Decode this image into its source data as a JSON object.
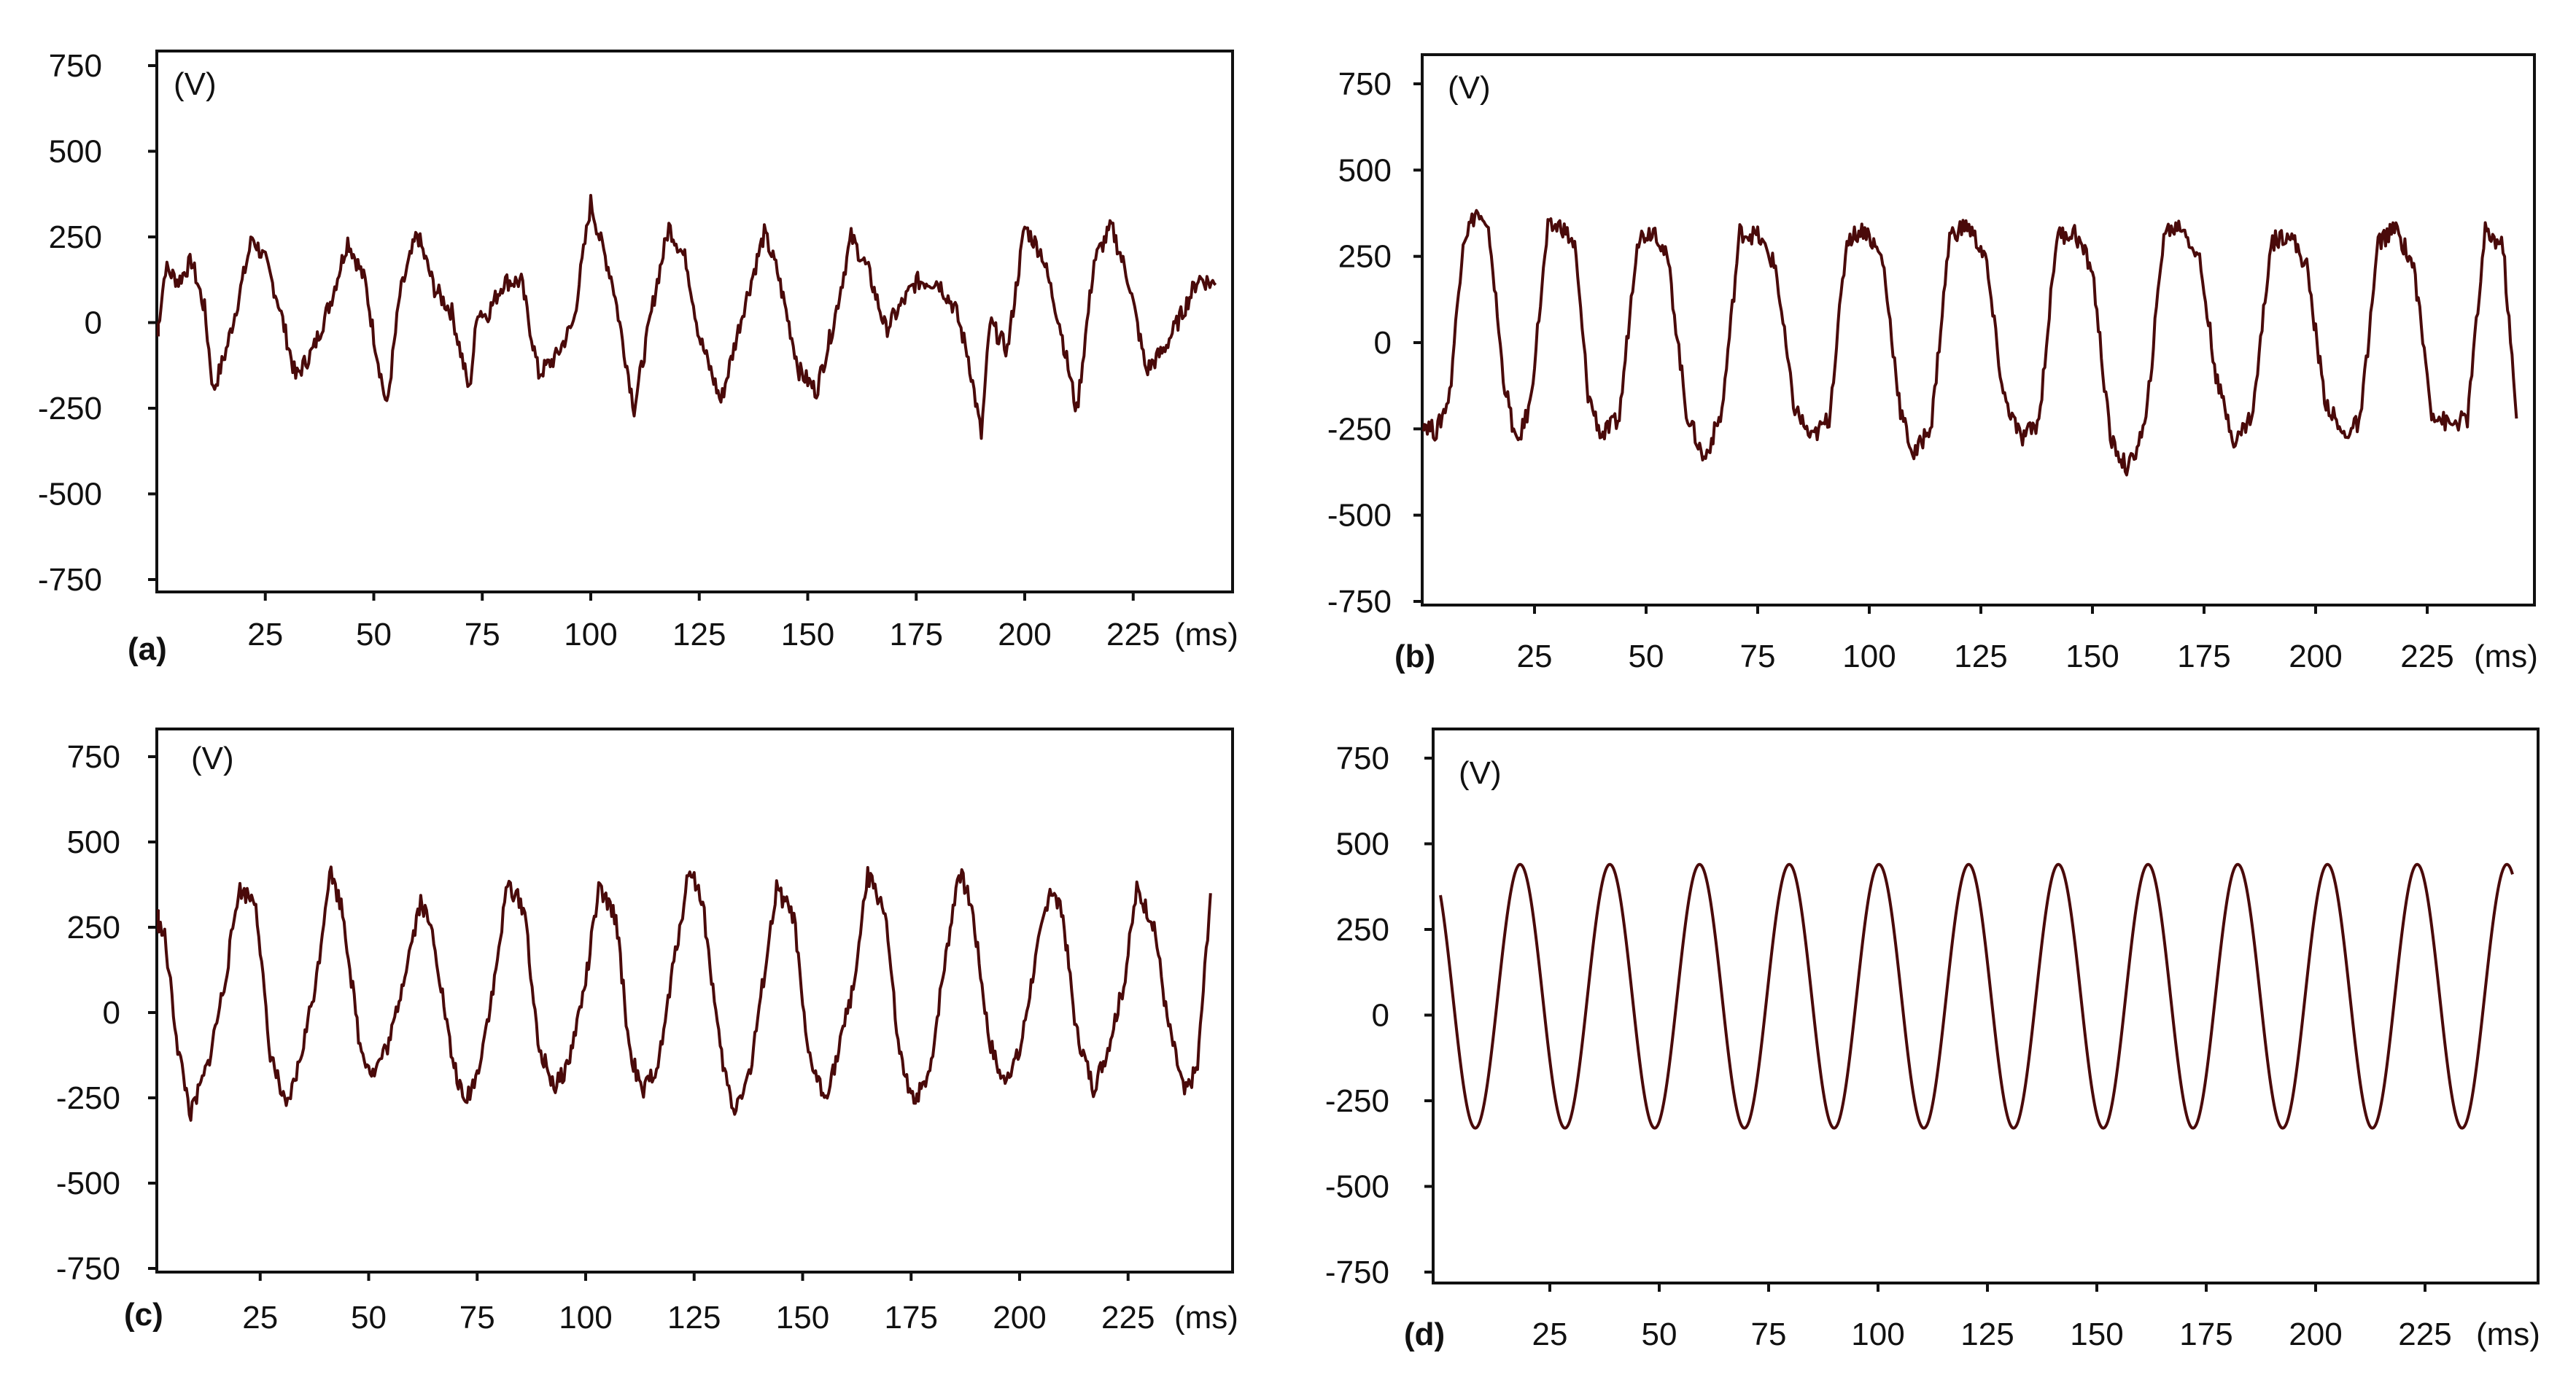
{
  "colors": {
    "waveform": "#4a0a0a",
    "axes": "#111111",
    "background": "#ffffff"
  },
  "chart_data": [
    {
      "type": "line",
      "panel_label": "(a)",
      "ylabel": "(V)",
      "xlabel": "(ms)",
      "ylim": [
        -750,
        750
      ],
      "xlim": [
        0,
        245
      ],
      "yticks": [
        "750",
        "500",
        "250",
        "0",
        "-250",
        "-500",
        "-750"
      ],
      "xticks": [
        "25",
        "50",
        "75",
        "100",
        "125",
        "150",
        "175",
        "200",
        "225"
      ],
      "series": [
        {
          "x": [
            0,
            2,
            5,
            8,
            11,
            13,
            16,
            19,
            22,
            25,
            28,
            32,
            36,
            40,
            44,
            48,
            50,
            53,
            56,
            60,
            64,
            68,
            72,
            74,
            76,
            80,
            84,
            88,
            92,
            96,
            100,
            102,
            105,
            110,
            115,
            118,
            122,
            125,
            130,
            135,
            140,
            143,
            148,
            152,
            156,
            160,
            164,
            168,
            175,
            180,
            184,
            187,
            190,
            192,
            196,
            200,
            204,
            208,
            212,
            216,
            220,
            224,
            228,
            232,
            236,
            240,
            244
          ],
          "y": [
            -40,
            160,
            120,
            180,
            40,
            -200,
            -80,
            80,
            250,
            180,
            60,
            -160,
            -80,
            60,
            240,
            120,
            -40,
            -250,
            80,
            260,
            100,
            30,
            -200,
            40,
            20,
            120,
            120,
            -150,
            -100,
            0,
            350,
            250,
            120,
            -250,
            100,
            280,
            180,
            -40,
            -230,
            30,
            260,
            150,
            -140,
            -200,
            0,
            250,
            150,
            -20,
            120,
            120,
            40,
            -100,
            -330,
            0,
            -80,
            280,
            200,
            0,
            -260,
            180,
            280,
            120,
            -140,
            -80,
            20,
            130,
            110
          ]
        }
      ]
    },
    {
      "type": "line",
      "panel_label": "(b)",
      "ylabel": "(V)",
      "xlabel": "(ms)",
      "ylim": [
        -750,
        750
      ],
      "xlim": [
        0,
        245
      ],
      "yticks": [
        "750",
        "500",
        "250",
        "0",
        "-250",
        "-500",
        "-750"
      ],
      "xticks": [
        "25",
        "50",
        "75",
        "100",
        "125",
        "150",
        "175",
        "200",
        "225"
      ],
      "series": [
        {
          "x": [
            0,
            3,
            6,
            9,
            12,
            15,
            18,
            21,
            24,
            28,
            31,
            34,
            37,
            40,
            44,
            48,
            52,
            55,
            59,
            63,
            67,
            71,
            75,
            79,
            83,
            87,
            91,
            95,
            99,
            103,
            107,
            110,
            114,
            118,
            122,
            126,
            130,
            134,
            138,
            142,
            146,
            150,
            154,
            158,
            162,
            166,
            170,
            174,
            178,
            182,
            186,
            190,
            194,
            198,
            202,
            206,
            210,
            214,
            218,
            222,
            226,
            230,
            234,
            238,
            242,
            245
          ],
          "y": [
            -230,
            -260,
            -150,
            300,
            380,
            300,
            -100,
            -300,
            -180,
            330,
            340,
            280,
            -150,
            -270,
            -220,
            300,
            330,
            230,
            -200,
            -340,
            -200,
            320,
            310,
            220,
            -180,
            -280,
            -220,
            300,
            330,
            240,
            -200,
            -330,
            -230,
            310,
            340,
            250,
            -150,
            -280,
            -230,
            310,
            320,
            210,
            -280,
            -370,
            -230,
            320,
            340,
            240,
            -120,
            -290,
            -200,
            290,
            320,
            220,
            -160,
            -270,
            -230,
            290,
            330,
            220,
            -200,
            -240,
            -220,
            320,
            280,
            -220
          ]
        }
      ]
    },
    {
      "type": "line",
      "panel_label": "(c)",
      "ylabel": "(V)",
      "xlabel": "(ms)",
      "ylim": [
        -750,
        750
      ],
      "xlim": [
        0,
        245
      ],
      "yticks": [
        "750",
        "500",
        "250",
        "0",
        "-250",
        "-500",
        "-750"
      ],
      "xticks": [
        "25",
        "50",
        "75",
        "100",
        "125",
        "150",
        "175",
        "200",
        "225"
      ],
      "series": [
        {
          "x": [
            0,
            3,
            6,
            9,
            13,
            17,
            20,
            24,
            27,
            31,
            34,
            38,
            41,
            44,
            48,
            51,
            55,
            58,
            62,
            65,
            69,
            72,
            75,
            79,
            82,
            86,
            89,
            93,
            96,
            100,
            103,
            107,
            110,
            113,
            117,
            120,
            124,
            127,
            131,
            134,
            138,
            141,
            144,
            148,
            151,
            155,
            158,
            162,
            165,
            169,
            172,
            175,
            179,
            182,
            186,
            189,
            193,
            196,
            200,
            203,
            207,
            210,
            213,
            217,
            220,
            224,
            227,
            231,
            234,
            238,
            241,
            244
          ],
          "y": [
            300,
            220,
            -100,
            -300,
            -150,
            100,
            360,
            330,
            -100,
            -290,
            -150,
            100,
            420,
            300,
            -100,
            -180,
            -80,
            100,
            330,
            220,
            -120,
            -270,
            -180,
            90,
            380,
            300,
            -100,
            -220,
            -150,
            90,
            360,
            280,
            -100,
            -240,
            -140,
            120,
            430,
            320,
            -110,
            -290,
            -170,
            100,
            360,
            280,
            -110,
            -250,
            -130,
            100,
            400,
            300,
            -100,
            -260,
            -200,
            80,
            420,
            310,
            -80,
            -200,
            -120,
            110,
            370,
            280,
            -50,
            -220,
            -120,
            80,
            360,
            260,
            -20,
            -240,
            -160,
            350
          ]
        }
      ]
    },
    {
      "type": "line",
      "panel_label": "(d)",
      "ylabel": "(V)",
      "xlabel": "(ms)",
      "ylim": [
        -750,
        750
      ],
      "xlim": [
        0,
        245
      ],
      "yticks": [
        "750",
        "500",
        "250",
        "0",
        "-250",
        "-500",
        "-750"
      ],
      "xticks": [
        "25",
        "50",
        "75",
        "100",
        "125",
        "150",
        "175",
        "200",
        "225"
      ],
      "series": [
        {
          "waveform": "sine",
          "amplitude": 385,
          "offset": 55,
          "period_ms": 20.5,
          "phase_deg": 130,
          "x_range": [
            0,
            245
          ]
        }
      ]
    }
  ]
}
